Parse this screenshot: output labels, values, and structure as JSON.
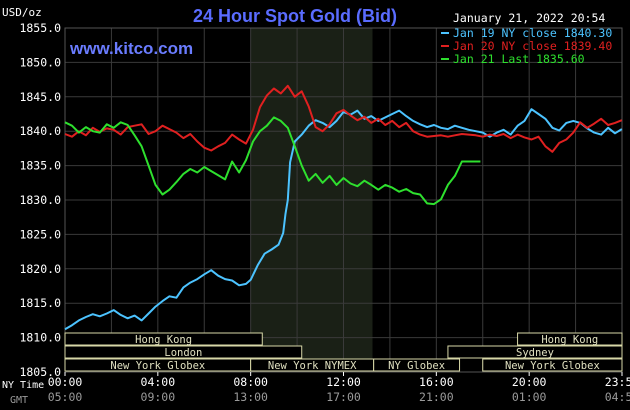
{
  "header": {
    "unit_label": "USD/oz",
    "title": "24 Hour Spot Gold (Bid)",
    "timestamp": "January 21, 2022 20:54",
    "brand": "www.kitco.com"
  },
  "colors": {
    "background": "#000000",
    "plot_bg": "#000000",
    "grid": "#3a3a3a",
    "axis_text": "#ffffff",
    "title": "#5a6cff",
    "brand": "#6a7cff",
    "session_shade": "#1a2016",
    "series_jan19": "#4cc3ff",
    "series_jan20": "#e02020",
    "series_jan21": "#2ee02e",
    "market_box_border": "#d8d8a8",
    "market_box_text": "#e0e0c0"
  },
  "chart_data": {
    "type": "line",
    "title": "24 Hour Spot Gold (Bid)",
    "ylabel": "USD/oz",
    "ylim": [
      1805.0,
      1855.0
    ],
    "yticks": [
      "1855.0",
      "1850.0",
      "1845.0",
      "1840.0",
      "1835.0",
      "1830.0",
      "1825.0",
      "1820.0",
      "1815.0",
      "1810.0",
      "1805.0"
    ],
    "xlim": [
      0,
      24
    ],
    "x_ticks_ny": [
      {
        "hour": 0,
        "label": "00:00"
      },
      {
        "hour": 4,
        "label": "04:00"
      },
      {
        "hour": 8,
        "label": "08:00"
      },
      {
        "hour": 12,
        "label": "12:00"
      },
      {
        "hour": 16,
        "label": "16:00"
      },
      {
        "hour": 20,
        "label": "20:00"
      },
      {
        "hour": 24,
        "label": "23:59"
      }
    ],
    "x_ticks_gmt": [
      {
        "hour": 0,
        "label": "05:00"
      },
      {
        "hour": 4,
        "label": "09:00"
      },
      {
        "hour": 8,
        "label": "13:00"
      },
      {
        "hour": 12,
        "label": "17:00"
      },
      {
        "hour": 16,
        "label": "21:00"
      },
      {
        "hour": 20,
        "label": "01:00"
      },
      {
        "hour": 24,
        "label": "04:59"
      }
    ],
    "x_row_labels": {
      "ny": "NY Time",
      "gmt": "GMT"
    },
    "grid": true,
    "legend_position": "top-right",
    "shaded_session": [
      8.0,
      13.25
    ],
    "series": [
      {
        "name": "Jan 19 NY close 1840.30",
        "color_key": "series_jan19",
        "x": [
          0.0,
          0.3,
          0.6,
          0.9,
          1.2,
          1.5,
          1.8,
          2.1,
          2.4,
          2.7,
          3.0,
          3.3,
          3.6,
          3.9,
          4.2,
          4.5,
          4.8,
          5.1,
          5.4,
          5.7,
          6.0,
          6.3,
          6.6,
          6.9,
          7.2,
          7.5,
          7.8,
          8.0,
          8.3,
          8.6,
          8.9,
          9.2,
          9.4,
          9.5,
          9.6,
          9.7,
          9.9,
          10.2,
          10.5,
          10.8,
          11.1,
          11.4,
          11.7,
          12.0,
          12.3,
          12.6,
          12.9,
          13.2,
          13.5,
          13.8,
          14.1,
          14.4,
          14.7,
          15.0,
          15.3,
          15.6,
          15.9,
          16.2,
          16.5,
          16.8,
          17.1,
          17.4,
          17.7,
          18.0,
          18.3,
          18.6,
          18.9,
          19.2,
          19.5,
          19.8,
          20.1,
          20.4,
          20.7,
          21.0,
          21.3,
          21.6,
          21.9,
          22.2,
          22.5,
          22.8,
          23.1,
          23.4,
          23.7,
          23.99
        ],
        "y": [
          1811.2,
          1811.8,
          1812.5,
          1813.0,
          1813.4,
          1813.1,
          1813.5,
          1814.0,
          1813.3,
          1812.8,
          1813.2,
          1812.5,
          1813.5,
          1814.5,
          1815.3,
          1816.0,
          1815.8,
          1817.3,
          1818.0,
          1818.5,
          1819.2,
          1819.8,
          1819.0,
          1818.5,
          1818.3,
          1817.6,
          1817.8,
          1818.4,
          1820.5,
          1822.2,
          1822.8,
          1823.5,
          1825.2,
          1828.0,
          1830.0,
          1835.5,
          1838.5,
          1839.5,
          1840.8,
          1841.6,
          1841.2,
          1840.6,
          1841.5,
          1842.8,
          1842.4,
          1843.0,
          1841.8,
          1842.2,
          1841.5,
          1842.0,
          1842.5,
          1843.0,
          1842.2,
          1841.5,
          1841.0,
          1840.6,
          1840.9,
          1840.5,
          1840.3,
          1840.8,
          1840.5,
          1840.2,
          1840.0,
          1839.8,
          1839.2,
          1839.8,
          1840.2,
          1839.5,
          1840.8,
          1841.5,
          1843.2,
          1842.5,
          1841.8,
          1840.5,
          1840.1,
          1841.2,
          1841.5,
          1841.2,
          1840.4,
          1839.8,
          1839.5,
          1840.5,
          1839.7,
          1840.3
        ]
      },
      {
        "name": "Jan 20 NY close 1839.40",
        "color_key": "series_jan20",
        "x": [
          0.0,
          0.3,
          0.6,
          0.9,
          1.2,
          1.5,
          1.8,
          2.1,
          2.4,
          2.7,
          3.0,
          3.3,
          3.6,
          3.9,
          4.2,
          4.5,
          4.8,
          5.1,
          5.4,
          5.7,
          6.0,
          6.3,
          6.6,
          6.9,
          7.2,
          7.5,
          7.8,
          8.1,
          8.4,
          8.7,
          9.0,
          9.3,
          9.6,
          9.9,
          10.2,
          10.5,
          10.8,
          11.1,
          11.4,
          11.7,
          12.0,
          12.3,
          12.6,
          12.9,
          13.2,
          13.5,
          13.8,
          14.1,
          14.4,
          14.7,
          15.0,
          15.3,
          15.6,
          15.9,
          16.2,
          16.5,
          16.8,
          17.1,
          17.4,
          17.7,
          18.0,
          18.3,
          18.6,
          18.9,
          19.2,
          19.5,
          19.8,
          20.1,
          20.4,
          20.7,
          21.0,
          21.3,
          21.6,
          21.9,
          22.2,
          22.5,
          22.8,
          23.1,
          23.4,
          23.7,
          23.99
        ],
        "y": [
          1839.6,
          1839.2,
          1840.0,
          1839.4,
          1840.5,
          1839.9,
          1840.4,
          1840.2,
          1839.5,
          1840.6,
          1840.8,
          1841.0,
          1839.6,
          1840.0,
          1840.8,
          1840.3,
          1839.8,
          1839.0,
          1839.6,
          1838.5,
          1837.6,
          1837.2,
          1837.8,
          1838.3,
          1839.5,
          1838.8,
          1838.2,
          1840.2,
          1843.5,
          1845.2,
          1846.2,
          1845.5,
          1846.6,
          1845.0,
          1845.8,
          1843.6,
          1840.6,
          1840.0,
          1841.0,
          1842.6,
          1843.1,
          1842.3,
          1841.6,
          1842.1,
          1841.2,
          1841.8,
          1840.9,
          1841.5,
          1840.6,
          1841.2,
          1840.0,
          1839.5,
          1839.2,
          1839.3,
          1839.4,
          1839.2,
          1839.4,
          1839.6,
          1839.5,
          1839.4,
          1839.2,
          1839.5,
          1839.3,
          1839.6,
          1839.0,
          1839.5,
          1839.1,
          1838.8,
          1839.2,
          1837.8,
          1837.0,
          1838.3,
          1838.8,
          1839.8,
          1841.3,
          1840.5,
          1841.1,
          1841.8,
          1840.9,
          1841.2,
          1841.6
        ]
      },
      {
        "name": "Jan 21 Last 1835.60",
        "color_key": "series_jan21",
        "x": [
          0.0,
          0.3,
          0.6,
          0.9,
          1.2,
          1.5,
          1.8,
          2.1,
          2.4,
          2.7,
          3.0,
          3.3,
          3.6,
          3.9,
          4.2,
          4.5,
          4.8,
          5.1,
          5.4,
          5.7,
          6.0,
          6.3,
          6.6,
          6.9,
          7.2,
          7.5,
          7.8,
          8.1,
          8.4,
          8.7,
          9.0,
          9.3,
          9.6,
          9.9,
          10.2,
          10.5,
          10.8,
          11.1,
          11.4,
          11.7,
          12.0,
          12.3,
          12.6,
          12.9,
          13.2,
          13.5,
          13.8,
          14.1,
          14.4,
          14.7,
          15.0,
          15.3,
          15.6,
          15.9,
          16.2,
          16.5,
          16.8,
          17.1,
          17.4,
          17.7,
          17.9
        ],
        "y": [
          1841.3,
          1840.8,
          1839.8,
          1840.6,
          1840.0,
          1839.8,
          1841.0,
          1840.5,
          1841.3,
          1840.9,
          1839.4,
          1837.8,
          1835.0,
          1832.2,
          1830.8,
          1831.5,
          1832.6,
          1833.8,
          1834.5,
          1834.0,
          1834.8,
          1834.2,
          1833.6,
          1833.0,
          1835.6,
          1834.0,
          1835.8,
          1838.5,
          1840.0,
          1840.8,
          1842.0,
          1841.5,
          1840.5,
          1837.8,
          1835.0,
          1832.8,
          1833.8,
          1832.5,
          1833.5,
          1832.2,
          1833.2,
          1832.4,
          1832.0,
          1832.8,
          1832.2,
          1831.5,
          1832.2,
          1831.8,
          1831.2,
          1831.6,
          1831.0,
          1830.8,
          1829.5,
          1829.4,
          1830.1,
          1832.2,
          1833.5,
          1835.6,
          1835.6,
          1835.6,
          1835.6
        ]
      }
    ],
    "markets": [
      {
        "label": "Hong Kong",
        "row": 0,
        "start": 0.0,
        "end": 8.5
      },
      {
        "label": "Hong Kong",
        "row": 0,
        "start": 19.5,
        "end": 24.0
      },
      {
        "label": "London",
        "row": 1,
        "start": 0.0,
        "end": 10.2
      },
      {
        "label": "Sydney",
        "row": 1,
        "start": 16.5,
        "end": 24.0
      },
      {
        "label": "New York Globex",
        "row": 2,
        "start": 0.0,
        "end": 8.0
      },
      {
        "label": "New York NYMEX",
        "row": 2,
        "start": 8.0,
        "end": 13.3
      },
      {
        "label": "NY Globex",
        "row": 2,
        "start": 13.3,
        "end": 17.0
      },
      {
        "label": "New York Globex",
        "row": 2,
        "start": 18.0,
        "end": 24.0
      }
    ]
  }
}
